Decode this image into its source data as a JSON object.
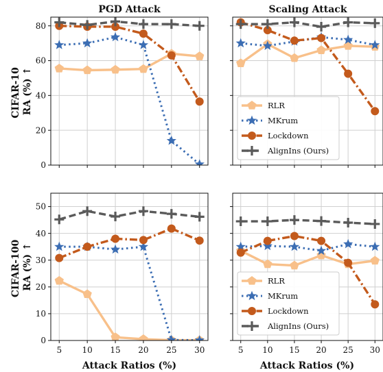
{
  "figure": {
    "col_titles": [
      "PGD Attack",
      "Scaling Attack"
    ],
    "row_labels": [
      [
        "CIFAR-10",
        "RA (%) ↑"
      ],
      [
        "CIFAR-100",
        "RA (%) ↑"
      ]
    ],
    "xlabel": "Attack Ratios (%)"
  },
  "legend": {
    "placement": "lower-left of right-column panels",
    "entries": [
      {
        "name": "RLR",
        "color": "#f8c08a",
        "marker": "pentagon",
        "style": "solid"
      },
      {
        "name": "MKrum",
        "color": "#3b6db3",
        "marker": "star",
        "style": "dotted"
      },
      {
        "name": "Lockdown",
        "color": "#c35a1c",
        "marker": "circle",
        "style": "dashdot"
      },
      {
        "name": "AlignIns (Ours)",
        "color": "#5a5a5a",
        "marker": "plus",
        "style": "dashed"
      }
    ]
  },
  "chart_data": [
    {
      "type": "line",
      "title": "PGD Attack",
      "ylabel": "CIFAR-10 RA (%) ↑",
      "xlabel": "",
      "x": [
        5,
        10,
        15,
        20,
        25,
        30
      ],
      "xlim": [
        3.5,
        31.5
      ],
      "ylim": [
        0,
        85
      ],
      "yticks": [
        0,
        20,
        40,
        60,
        80
      ],
      "grid": true,
      "series": [
        {
          "name": "RLR",
          "values": [
            55.5,
            54.5,
            54.8,
            55.2,
            64.0,
            62.5
          ]
        },
        {
          "name": "MKrum",
          "values": [
            69.0,
            70.0,
            73.5,
            69.0,
            14.0,
            0.5
          ]
        },
        {
          "name": "Lockdown",
          "values": [
            80.0,
            79.5,
            79.5,
            75.5,
            63.0,
            36.5
          ]
        },
        {
          "name": "AlignIns (Ours)",
          "values": [
            82.0,
            80.5,
            82.5,
            81.0,
            81.0,
            80.0
          ]
        }
      ]
    },
    {
      "type": "line",
      "title": "Scaling Attack",
      "ylabel": "",
      "xlabel": "",
      "x": [
        5,
        10,
        15,
        20,
        25,
        30
      ],
      "xlim": [
        3.5,
        31.5
      ],
      "ylim": [
        0,
        85
      ],
      "yticks": [
        0,
        20,
        40,
        60,
        80
      ],
      "grid": true,
      "legend": true,
      "series": [
        {
          "name": "RLR",
          "values": [
            58.5,
            69.5,
            61.5,
            66.0,
            68.5,
            68.0
          ]
        },
        {
          "name": "MKrum",
          "values": [
            70.0,
            68.5,
            71.0,
            73.5,
            72.0,
            69.0
          ]
        },
        {
          "name": "Lockdown",
          "values": [
            82.0,
            77.5,
            71.5,
            73.0,
            52.5,
            31.0
          ]
        },
        {
          "name": "AlignIns (Ours)",
          "values": [
            81.0,
            81.0,
            82.0,
            79.5,
            82.0,
            81.5
          ]
        }
      ]
    },
    {
      "type": "line",
      "title": "",
      "ylabel": "CIFAR-100 RA (%) ↑",
      "xlabel": "Attack Ratios (%)",
      "x": [
        5,
        10,
        15,
        20,
        25,
        30
      ],
      "xlim": [
        3.5,
        31.5
      ],
      "ylim": [
        0,
        55
      ],
      "yticks": [
        0,
        10,
        20,
        30,
        40,
        50
      ],
      "xticks": [
        5,
        10,
        15,
        20,
        25,
        30
      ],
      "grid": true,
      "series": [
        {
          "name": "RLR",
          "values": [
            22.3,
            17.3,
            1.2,
            0.5,
            0.1,
            0.1
          ]
        },
        {
          "name": "MKrum",
          "values": [
            35.0,
            35.0,
            34.0,
            35.0,
            0.2,
            0.1
          ]
        },
        {
          "name": "Lockdown",
          "values": [
            30.8,
            35.0,
            38.0,
            37.5,
            41.8,
            37.3
          ]
        },
        {
          "name": "AlignIns (Ours)",
          "values": [
            45.2,
            48.3,
            46.3,
            48.3,
            47.3,
            46.2
          ]
        }
      ]
    },
    {
      "type": "line",
      "title": "",
      "ylabel": "",
      "xlabel": "Attack Ratios (%)",
      "x": [
        5,
        10,
        15,
        20,
        25,
        30
      ],
      "xlim": [
        3.5,
        31.5
      ],
      "ylim": [
        0,
        55
      ],
      "yticks": [
        0,
        10,
        20,
        30,
        40,
        50
      ],
      "xticks": [
        5,
        10,
        15,
        20,
        25,
        30
      ],
      "grid": true,
      "legend": true,
      "series": [
        {
          "name": "RLR",
          "values": [
            33.5,
            28.5,
            28.0,
            31.8,
            28.5,
            29.8
          ]
        },
        {
          "name": "MKrum",
          "values": [
            35.0,
            35.3,
            35.0,
            33.5,
            36.0,
            35.0
          ]
        },
        {
          "name": "Lockdown",
          "values": [
            32.8,
            37.2,
            39.0,
            37.2,
            29.0,
            13.5
          ]
        },
        {
          "name": "AlignIns (Ours)",
          "values": [
            44.5,
            44.5,
            45.0,
            44.6,
            44.0,
            43.5
          ]
        }
      ]
    }
  ]
}
